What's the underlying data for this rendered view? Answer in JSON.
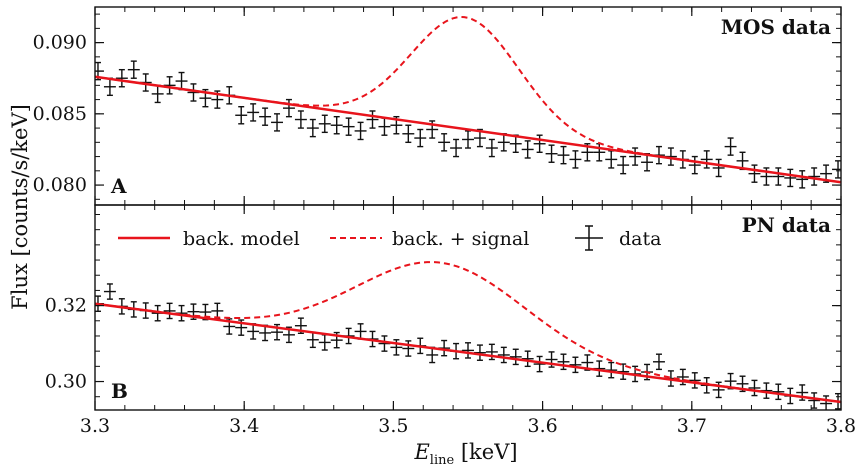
{
  "chart_data": {
    "type": "scatter",
    "shared_x": {
      "label_main": "E",
      "label_sub": "line",
      "label_unit": " [keV]",
      "xlim": [
        3.3,
        3.8
      ],
      "ticks": [
        "3.3",
        "3.4",
        "3.5",
        "3.6",
        "3.7",
        "3.8"
      ]
    },
    "ylabel": "Flux [counts/s/keV]",
    "legend": {
      "placement": "upper panel B, top",
      "entries": [
        {
          "label": "back. model",
          "style": "solid",
          "color": "#e8141c"
        },
        {
          "label": "back. + signal",
          "style": "dashed",
          "color": "#e8141c"
        },
        {
          "label": "data",
          "style": "errorbar",
          "color": "#111111"
        }
      ]
    },
    "panels": [
      {
        "id": "A",
        "letter": "A",
        "title": "MOS data",
        "ylim": [
          0.0786,
          0.0925
        ],
        "yticks": [
          0.08,
          0.085,
          0.09
        ],
        "ytick_labels": [
          "0.080",
          "0.085",
          "0.090"
        ],
        "background": {
          "x": [
            3.3,
            3.8
          ],
          "y": [
            0.0876,
            0.0802
          ]
        },
        "signal": {
          "center": 3.548,
          "sigma": 0.036,
          "amplitude": 0.00785
        },
        "data": {
          "x_err": 0.004,
          "y_err": 0.0006,
          "x": [
            3.302,
            3.31,
            3.318,
            3.326,
            3.334,
            3.342,
            3.35,
            3.358,
            3.366,
            3.374,
            3.382,
            3.39,
            3.398,
            3.406,
            3.414,
            3.422,
            3.43,
            3.438,
            3.446,
            3.454,
            3.462,
            3.47,
            3.478,
            3.486,
            3.494,
            3.502,
            3.51,
            3.518,
            3.526,
            3.534,
            3.542,
            3.55,
            3.558,
            3.566,
            3.574,
            3.582,
            3.59,
            3.598,
            3.606,
            3.614,
            3.622,
            3.63,
            3.638,
            3.646,
            3.654,
            3.662,
            3.67,
            3.678,
            3.686,
            3.694,
            3.702,
            3.71,
            3.718,
            3.726,
            3.734,
            3.742,
            3.75,
            3.758,
            3.766,
            3.774,
            3.782,
            3.79,
            3.798
          ],
          "y": [
            0.088,
            0.0869,
            0.0875,
            0.0881,
            0.0872,
            0.0864,
            0.087,
            0.0873,
            0.0865,
            0.0861,
            0.086,
            0.0863,
            0.0849,
            0.0851,
            0.0848,
            0.0844,
            0.0854,
            0.0846,
            0.084,
            0.0843,
            0.0842,
            0.0841,
            0.0838,
            0.0846,
            0.0841,
            0.0842,
            0.0836,
            0.0833,
            0.0839,
            0.083,
            0.0826,
            0.0832,
            0.0833,
            0.0826,
            0.083,
            0.0829,
            0.0825,
            0.0829,
            0.0822,
            0.0821,
            0.0818,
            0.0823,
            0.0823,
            0.0818,
            0.0814,
            0.082,
            0.0816,
            0.0821,
            0.082,
            0.0818,
            0.0814,
            0.0818,
            0.0812,
            0.0827,
            0.0817,
            0.0808,
            0.0806,
            0.0806,
            0.0805,
            0.0804,
            0.0806,
            0.0808,
            0.0811
          ]
        }
      },
      {
        "id": "B",
        "letter": "B",
        "title": "PN data",
        "ylim": [
          0.2925,
          0.3465
        ],
        "yticks": [
          0.3,
          0.32
        ],
        "ytick_labels": [
          "0.30",
          "0.32"
        ],
        "background": {
          "x": [
            3.3,
            3.8
          ],
          "y": [
            0.3205,
            0.2946
          ]
        },
        "signal": {
          "center": 3.532,
          "sigma": 0.056,
          "amplitude": 0.0228
        },
        "data": {
          "x_err": 0.004,
          "y_err": 0.002,
          "x": [
            3.302,
            3.31,
            3.318,
            3.326,
            3.334,
            3.342,
            3.35,
            3.358,
            3.366,
            3.374,
            3.382,
            3.39,
            3.398,
            3.406,
            3.414,
            3.422,
            3.43,
            3.438,
            3.446,
            3.454,
            3.462,
            3.47,
            3.478,
            3.486,
            3.494,
            3.502,
            3.51,
            3.518,
            3.526,
            3.534,
            3.542,
            3.55,
            3.558,
            3.566,
            3.574,
            3.582,
            3.59,
            3.598,
            3.606,
            3.614,
            3.622,
            3.63,
            3.638,
            3.646,
            3.654,
            3.662,
            3.67,
            3.678,
            3.686,
            3.694,
            3.702,
            3.71,
            3.718,
            3.726,
            3.734,
            3.742,
            3.75,
            3.758,
            3.766,
            3.774,
            3.782,
            3.79,
            3.798
          ],
          "y": [
            0.3205,
            0.3237,
            0.3198,
            0.319,
            0.3187,
            0.318,
            0.3186,
            0.318,
            0.3184,
            0.3183,
            0.3186,
            0.3145,
            0.3142,
            0.3132,
            0.3128,
            0.313,
            0.3123,
            0.3147,
            0.311,
            0.3103,
            0.3109,
            0.312,
            0.3132,
            0.3112,
            0.31,
            0.309,
            0.3087,
            0.3094,
            0.307,
            0.3088,
            0.308,
            0.3082,
            0.3076,
            0.3078,
            0.307,
            0.3065,
            0.306,
            0.3046,
            0.3058,
            0.3052,
            0.3044,
            0.305,
            0.3034,
            0.303,
            0.3026,
            0.302,
            0.3025,
            0.3052,
            0.3008,
            0.3012,
            0.3003,
            0.299,
            0.2978,
            0.3001,
            0.2994,
            0.2983,
            0.2976,
            0.2973,
            0.2962,
            0.2971,
            0.295,
            0.2942,
            0.2948
          ]
        }
      }
    ]
  }
}
